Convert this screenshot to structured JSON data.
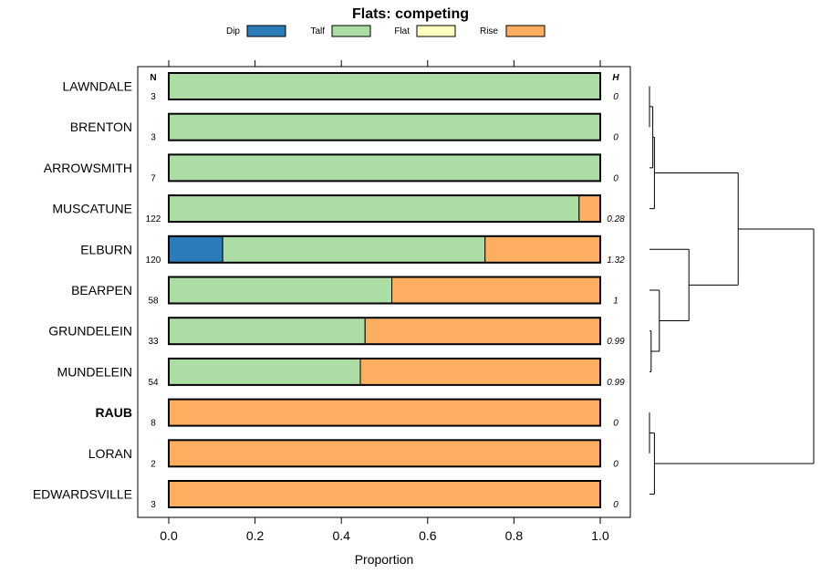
{
  "chart_data": {
    "type": "bar",
    "orientation": "horizontal",
    "stacked": true,
    "title": "Flats: competing",
    "xlabel": "Proportion",
    "xlim": [
      0,
      1
    ],
    "xticks": [
      "0.0",
      "0.2",
      "0.4",
      "0.6",
      "0.8",
      "1.0"
    ],
    "legend": [
      {
        "name": "Dip",
        "color": "#2b7bb9"
      },
      {
        "name": "Talf",
        "color": "#abdda4"
      },
      {
        "name": "Flat",
        "color": "#ffffbf"
      },
      {
        "name": "Rise",
        "color": "#fdae61"
      }
    ],
    "n_header": "N",
    "h_header": "H",
    "rows": [
      {
        "label": "LAWNDALE",
        "bold": false,
        "n": "3",
        "h": "0",
        "values": [
          0,
          1,
          0,
          0
        ]
      },
      {
        "label": "BRENTON",
        "bold": false,
        "n": "3",
        "h": "0",
        "values": [
          0,
          1,
          0,
          0
        ]
      },
      {
        "label": "ARROWSMITH",
        "bold": false,
        "n": "7",
        "h": "0",
        "values": [
          0,
          1,
          0,
          0
        ]
      },
      {
        "label": "MUSCATUNE",
        "bold": false,
        "n": "122",
        "h": "0.28",
        "values": [
          0,
          0.951,
          0,
          0.049
        ]
      },
      {
        "label": "ELBURN",
        "bold": false,
        "n": "120",
        "h": "1.32",
        "values": [
          0.125,
          0.608,
          0,
          0.267
        ]
      },
      {
        "label": "BEARPEN",
        "bold": false,
        "n": "58",
        "h": "1",
        "values": [
          0,
          0.517,
          0,
          0.483
        ]
      },
      {
        "label": "GRUNDELEIN",
        "bold": false,
        "n": "33",
        "h": "0.99",
        "values": [
          0,
          0.455,
          0,
          0.545
        ]
      },
      {
        "label": "MUNDELEIN",
        "bold": false,
        "n": "54",
        "h": "0.99",
        "values": [
          0,
          0.444,
          0,
          0.556
        ]
      },
      {
        "label": "RAUB",
        "bold": true,
        "n": "8",
        "h": "0",
        "values": [
          0,
          0,
          0,
          1
        ]
      },
      {
        "label": "LORAN",
        "bold": false,
        "n": "2",
        "h": "0",
        "values": [
          0,
          0,
          0,
          1
        ]
      },
      {
        "label": "EDWARDSVILLE",
        "bold": false,
        "n": "3",
        "h": "0",
        "values": [
          0,
          0,
          0,
          1
        ]
      }
    ],
    "dendrogram": {
      "type": "hierarchical-clustering",
      "merges": [
        {
          "id": "c1",
          "left": "LAWNDALE",
          "right": "BRENTON",
          "height": 0.0
        },
        {
          "id": "c2",
          "left": "c1",
          "right": "ARROWSMITH",
          "height": 0.02
        },
        {
          "id": "c3",
          "left": "c2",
          "right": "MUSCATUNE",
          "height": 0.03
        },
        {
          "id": "c4",
          "left": "GRUNDELEIN",
          "right": "MUNDELEIN",
          "height": 0.01
        },
        {
          "id": "c5",
          "left": "BEARPEN",
          "right": "c4",
          "height": 0.06
        },
        {
          "id": "c6",
          "left": "ELBURN",
          "right": "c5",
          "height": 0.24
        },
        {
          "id": "c7",
          "left": "c3",
          "right": "c6",
          "height": 0.54
        },
        {
          "id": "c8",
          "left": "RAUB",
          "right": "LORAN",
          "height": 0.0
        },
        {
          "id": "c9",
          "left": "c8",
          "right": "EDWARDSVILLE",
          "height": 0.03
        },
        {
          "id": "c10",
          "left": "c7",
          "right": "c9",
          "height": 1.0
        }
      ]
    }
  }
}
